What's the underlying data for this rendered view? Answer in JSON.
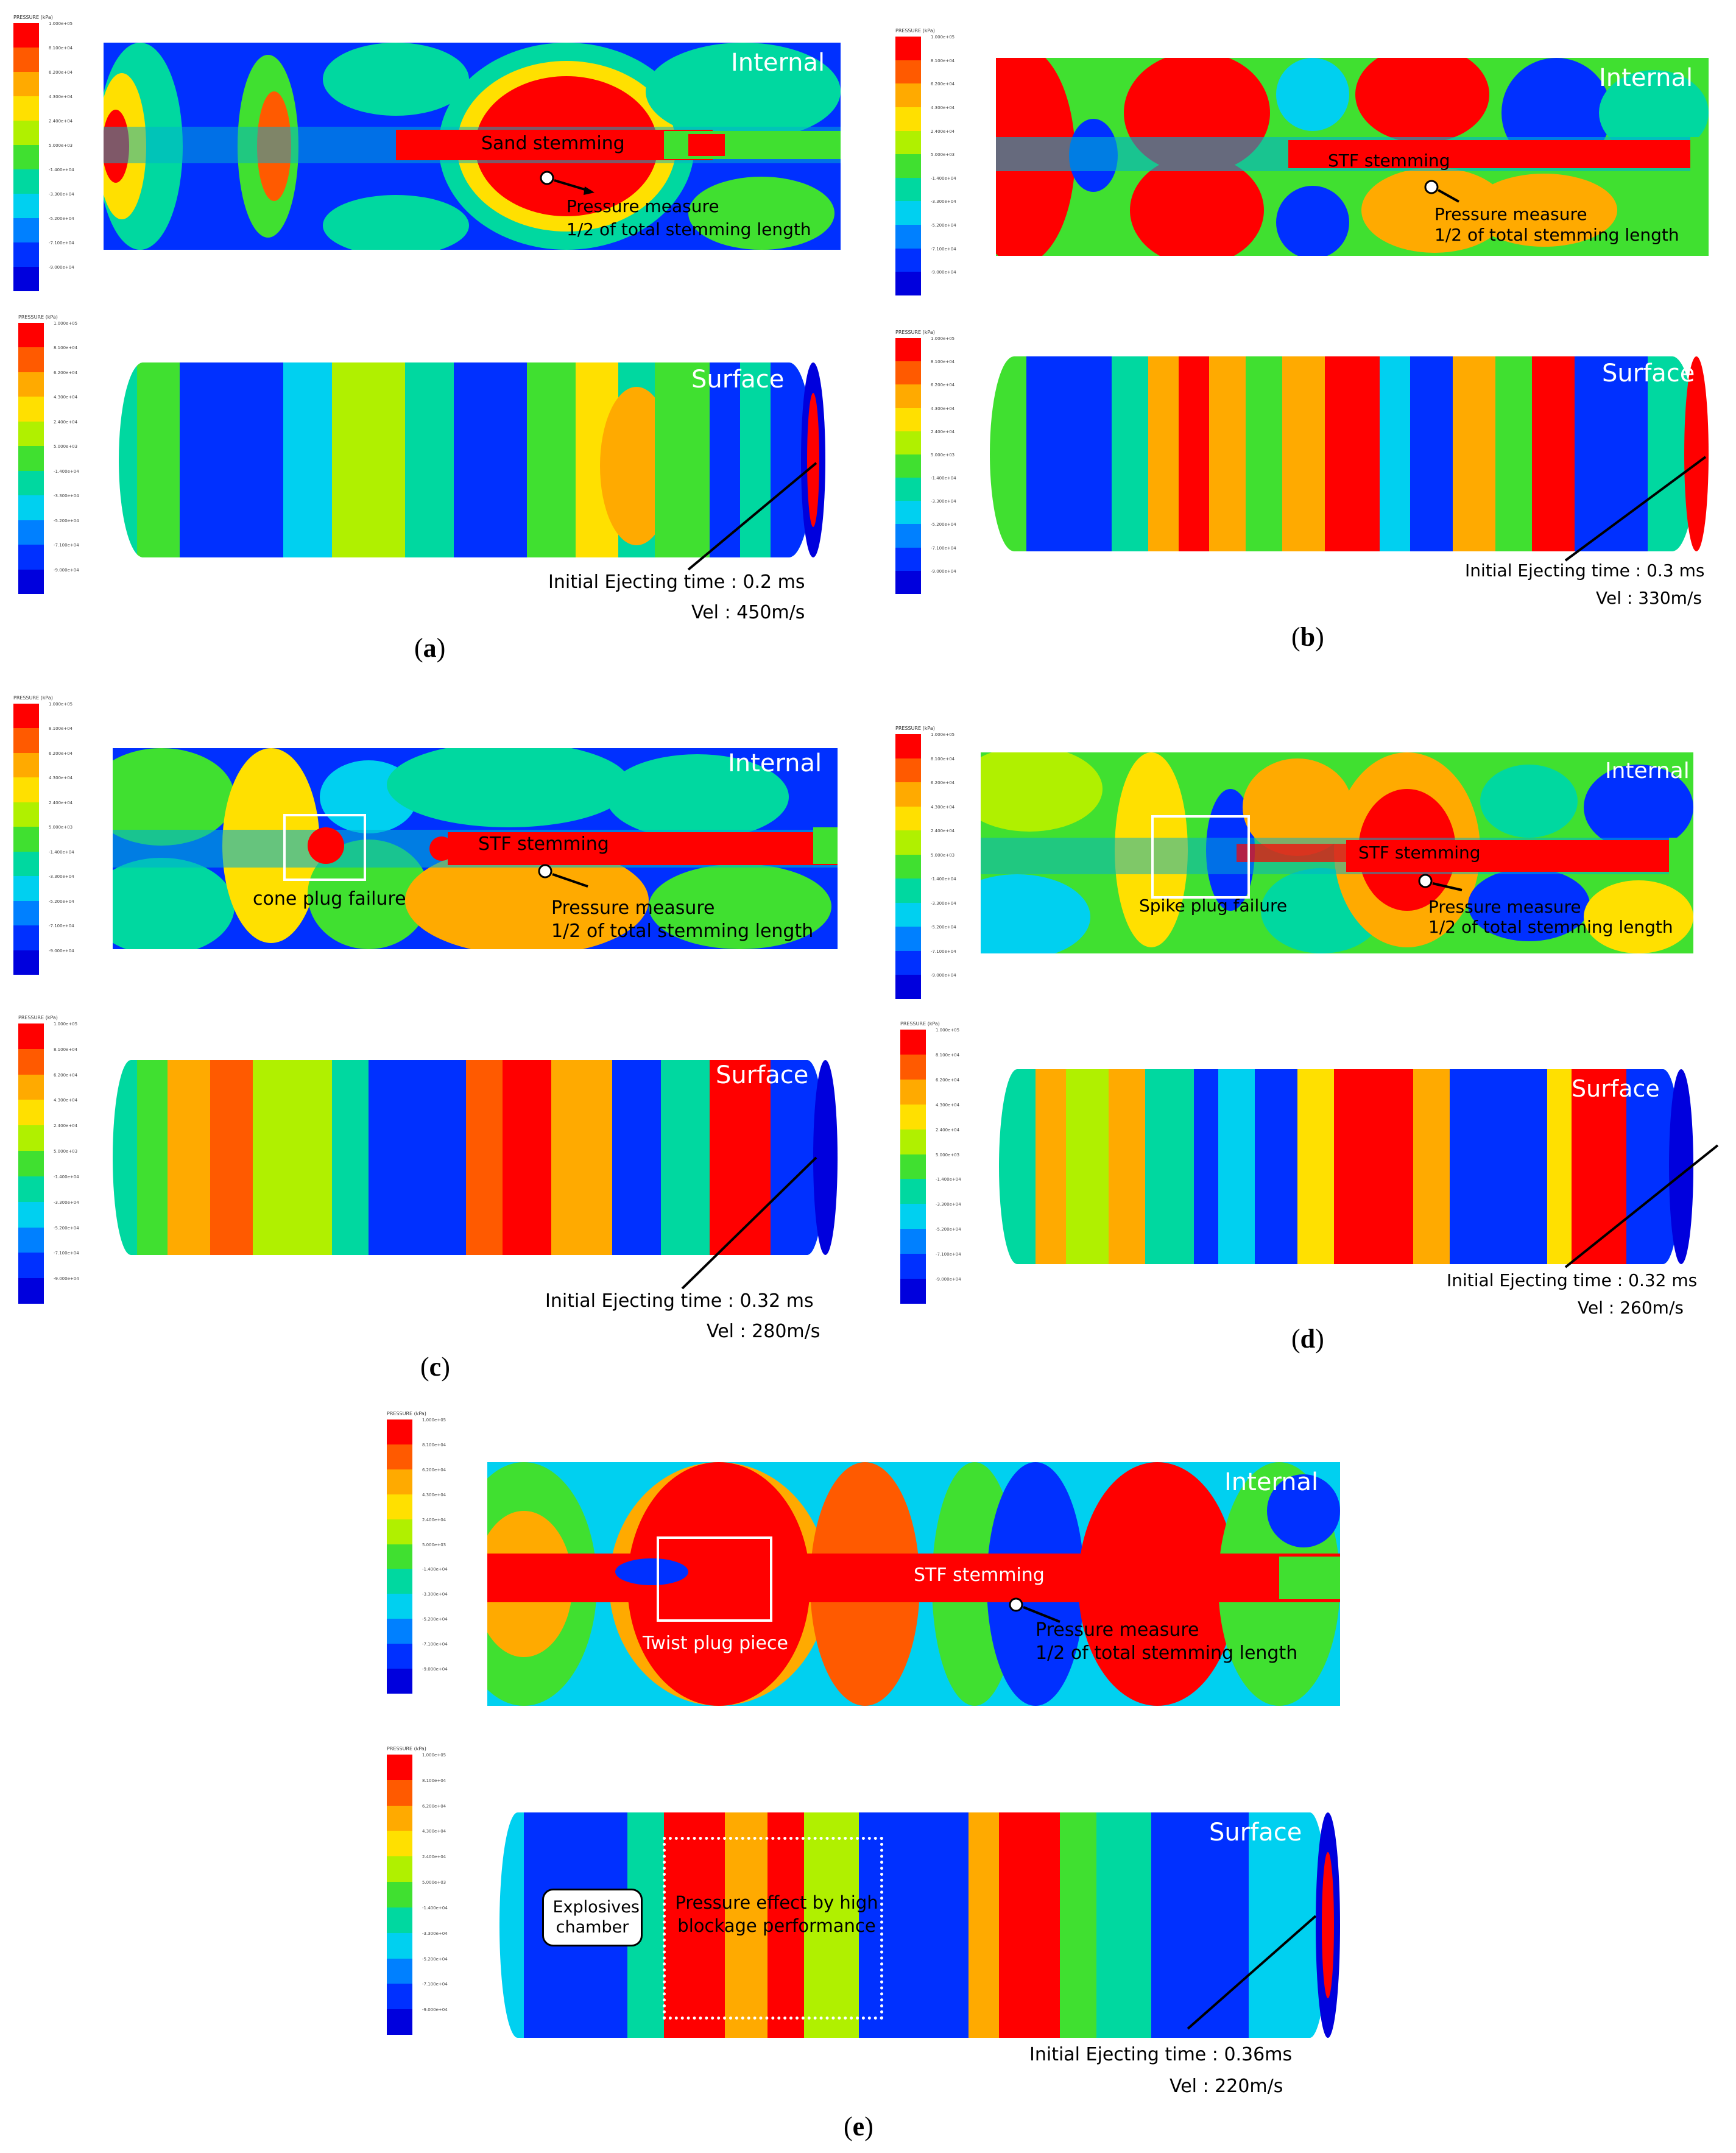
{
  "legend": {
    "title": "PRESSURE (kPa)",
    "ticks": [
      "1.000e+05",
      "8.100e+04",
      "6.200e+04",
      "4.300e+04",
      "2.400e+04",
      "5.000e+03",
      "-1.400e+04",
      "-3.300e+04",
      "-5.200e+04",
      "-7.100e+04",
      "-9.000e+04"
    ],
    "colors": [
      "#ff0000",
      "#ff5a00",
      "#ffaa00",
      "#ffe000",
      "#b0f000",
      "#40e030",
      "#00d8a0",
      "#00d0f0",
      "#0080ff",
      "#0030ff",
      "#0000dd"
    ]
  },
  "labels": {
    "internal": "Internal",
    "surface": "Surface",
    "pressure_measure": "Pressure measure",
    "half_stemming": "1/2 of total stemming length"
  },
  "panels": {
    "a": {
      "stemming": "Sand stemming",
      "eject": "Initial Ejecting time : 0.2 ms",
      "vel": "Vel : 450m/s",
      "caption_letter": "a"
    },
    "b": {
      "stemming": "STF stemming",
      "eject": "Initial Ejecting time : 0.3 ms",
      "vel": "Vel : 330m/s",
      "caption_letter": "b"
    },
    "c": {
      "stemming": "STF stemming",
      "plug": "cone plug failure",
      "eject": "Initial Ejecting time : 0.32 ms",
      "vel": "Vel : 280m/s",
      "caption_letter": "c"
    },
    "d": {
      "stemming": "STF stemming",
      "plug": "Spike plug failure",
      "eject": "Initial Ejecting time : 0.32 ms",
      "vel": "Vel : 260m/s",
      "caption_letter": "d"
    },
    "e": {
      "stemming": "STF stemming",
      "plug": "Twist plug piece",
      "eject": "Initial Ejecting time : 0.36ms",
      "vel": "Vel : 220m/s",
      "explosives": "Explosives chamber",
      "pressure_effect": "Pressure effect by high blockage performance",
      "caption_letter": "e"
    }
  },
  "caption_paren_open": "(",
  "caption_paren_close": ")"
}
